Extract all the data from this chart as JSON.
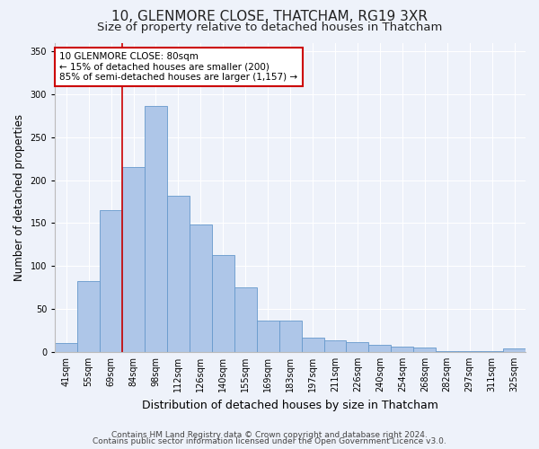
{
  "title": "10, GLENMORE CLOSE, THATCHAM, RG19 3XR",
  "subtitle": "Size of property relative to detached houses in Thatcham",
  "xlabel": "Distribution of detached houses by size in Thatcham",
  "ylabel": "Number of detached properties",
  "categories": [
    "41sqm",
    "55sqm",
    "69sqm",
    "84sqm",
    "98sqm",
    "112sqm",
    "126sqm",
    "140sqm",
    "155sqm",
    "169sqm",
    "183sqm",
    "197sqm",
    "211sqm",
    "226sqm",
    "240sqm",
    "254sqm",
    "268sqm",
    "282sqm",
    "297sqm",
    "311sqm",
    "325sqm"
  ],
  "values": [
    10,
    83,
    165,
    215,
    286,
    182,
    148,
    113,
    75,
    36,
    36,
    17,
    13,
    11,
    8,
    6,
    5,
    1,
    1,
    1,
    4
  ],
  "bar_color": "#aec6e8",
  "bar_edge_color": "#6699cc",
  "vline_color": "#cc0000",
  "vline_pos": 2.5,
  "annotation_text": "10 GLENMORE CLOSE: 80sqm\n← 15% of detached houses are smaller (200)\n85% of semi-detached houses are larger (1,157) →",
  "annotation_box_facecolor": "#ffffff",
  "annotation_box_edgecolor": "#cc0000",
  "ylim": [
    0,
    360
  ],
  "yticks": [
    0,
    50,
    100,
    150,
    200,
    250,
    300,
    350
  ],
  "footer1": "Contains HM Land Registry data © Crown copyright and database right 2024.",
  "footer2": "Contains public sector information licensed under the Open Government Licence v3.0.",
  "bg_color": "#eef2fa",
  "plot_bg_color": "#eef2fa",
  "title_fontsize": 11,
  "subtitle_fontsize": 9.5,
  "tick_fontsize": 7,
  "ylabel_fontsize": 8.5,
  "xlabel_fontsize": 9,
  "annotation_fontsize": 7.5,
  "footer_fontsize": 6.5
}
